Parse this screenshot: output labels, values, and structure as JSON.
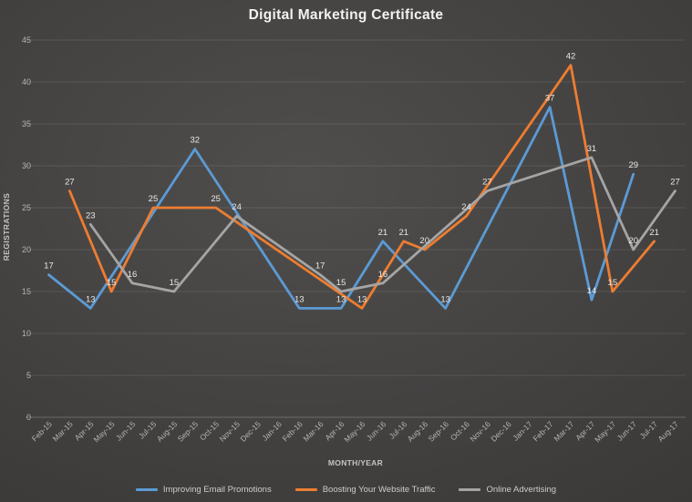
{
  "chart_data": {
    "type": "line",
    "title": "Digital Marketing Certificate",
    "xlabel": "MONTH/YEAR",
    "ylabel": "REGISTRATIONS",
    "ylim": [
      0,
      45
    ],
    "ytick_step": 5,
    "grid": "horizontal",
    "data_labels": true,
    "legend_position": "bottom",
    "categories": [
      "Feb-15",
      "Mar-15",
      "Apr-15",
      "May-15",
      "Jun-15",
      "Jul-15",
      "Aug-15",
      "Sep-15",
      "Oct-15",
      "Nov-15",
      "Dec-15",
      "Jan-16",
      "Feb-16",
      "Mar-16",
      "Apr-16",
      "May-16",
      "Jun-16",
      "Jul-16",
      "Aug-16",
      "Sep-16",
      "Oct-16",
      "Nov-16",
      "Dec-16",
      "Jan-17",
      "Feb-17",
      "Mar-17",
      "Apr-17",
      "May-17",
      "Jun-17",
      "Jul-17",
      "Aug-17"
    ],
    "series": [
      {
        "name": "Improving Email Promotions",
        "color": "#5B9BD5",
        "values": [
          17,
          null,
          13,
          null,
          null,
          null,
          null,
          32,
          null,
          null,
          null,
          null,
          13,
          null,
          13,
          null,
          21,
          null,
          null,
          13,
          null,
          null,
          null,
          null,
          37,
          null,
          14,
          null,
          29,
          null,
          null
        ]
      },
      {
        "name": "Boosting Your Website Traffic",
        "color": "#ED7D31",
        "values": [
          null,
          27,
          null,
          15,
          null,
          25,
          null,
          null,
          25,
          null,
          null,
          null,
          null,
          null,
          null,
          13,
          null,
          21,
          20,
          null,
          24,
          null,
          null,
          null,
          null,
          42,
          null,
          15,
          null,
          21,
          null
        ]
      },
      {
        "name": "Online Advertising",
        "color": "#A5A5A5",
        "values": [
          null,
          null,
          23,
          null,
          16,
          null,
          15,
          null,
          null,
          24,
          null,
          null,
          null,
          17,
          15,
          null,
          16,
          null,
          null,
          null,
          null,
          27,
          null,
          null,
          null,
          null,
          31,
          null,
          20,
          null,
          27
        ]
      }
    ]
  },
  "style_colors": {
    "background_center": "#504e4c",
    "background_edge": "#383634",
    "gridline": "rgba(255,255,255,0.10)",
    "axis_line": "rgba(255,255,255,0.22)",
    "tick_text": "#b3b3b3",
    "data_label_text": "#e8e8e8",
    "title_text": "#f2f2f2"
  }
}
